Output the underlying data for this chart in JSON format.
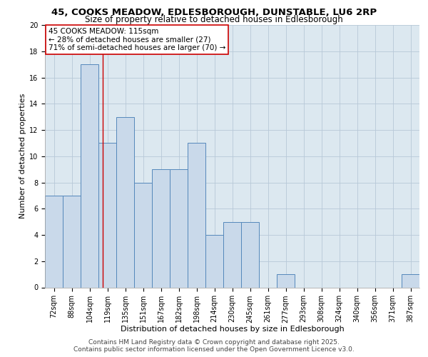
{
  "title_line1": "45, COOKS MEADOW, EDLESBOROUGH, DUNSTABLE, LU6 2RP",
  "title_line2": "Size of property relative to detached houses in Edlesborough",
  "xlabel": "Distribution of detached houses by size in Edlesborough",
  "ylabel": "Number of detached properties",
  "categories": [
    "72sqm",
    "88sqm",
    "104sqm",
    "119sqm",
    "135sqm",
    "151sqm",
    "167sqm",
    "182sqm",
    "198sqm",
    "214sqm",
    "230sqm",
    "245sqm",
    "261sqm",
    "277sqm",
    "293sqm",
    "308sqm",
    "324sqm",
    "340sqm",
    "356sqm",
    "371sqm",
    "387sqm"
  ],
  "values": [
    7,
    7,
    17,
    11,
    13,
    8,
    9,
    9,
    11,
    4,
    5,
    5,
    0,
    1,
    0,
    0,
    0,
    0,
    0,
    0,
    1
  ],
  "bar_color": "#c9d9ea",
  "bar_edge_color": "#5588bb",
  "bar_linewidth": 0.7,
  "grid_color": "#b8c8d8",
  "background_color": "#dce8f0",
  "annotation_text": "45 COOKS MEADOW: 115sqm\n← 28% of detached houses are smaller (27)\n71% of semi-detached houses are larger (70) →",
  "annotation_box_edge": "#cc0000",
  "vline_x": 2.73,
  "vline_color": "#cc0000",
  "vline_linewidth": 1.0,
  "ylim": [
    0,
    20
  ],
  "yticks": [
    0,
    2,
    4,
    6,
    8,
    10,
    12,
    14,
    16,
    18,
    20
  ],
  "footer_text": "Contains HM Land Registry data © Crown copyright and database right 2025.\nContains public sector information licensed under the Open Government Licence v3.0.",
  "title_fontsize": 9.5,
  "subtitle_fontsize": 8.5,
  "tick_fontsize": 7,
  "label_fontsize": 8,
  "annotation_fontsize": 7.5,
  "footer_fontsize": 6.5
}
